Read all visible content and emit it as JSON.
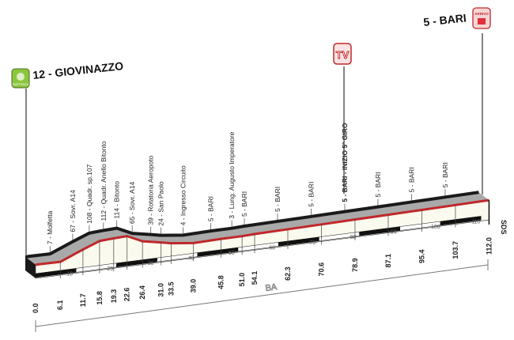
{
  "start": {
    "label": "12 - GIOVINAZZO",
    "badge": "PARTENZA",
    "color": "#8cc63f"
  },
  "finish": {
    "label": "5 - BARI",
    "badge": "ARRIVO",
    "color": "#e0303a"
  },
  "tv": {
    "label": "TV",
    "km": 78.9
  },
  "province": "BA",
  "sds": "SDS",
  "chart_data": {
    "type": "area",
    "xlabel": "",
    "ylabel": "",
    "xlim": [
      0,
      112
    ],
    "distance_ticks": [
      10,
      20,
      30,
      40,
      50,
      60,
      70,
      80,
      90,
      100,
      110
    ],
    "points": [
      {
        "km": 0.0,
        "km_label": "0.0",
        "elev": 12,
        "label": ""
      },
      {
        "km": 6.1,
        "km_label": "6.1",
        "elev": 7,
        "label": "7 - Molfetta"
      },
      {
        "km": 11.7,
        "km_label": "11.7",
        "elev": 67,
        "label": "67 - Sovr. A14"
      },
      {
        "km": 15.8,
        "km_label": "15.8",
        "elev": 108,
        "label": "108 - Quadr. sp.107"
      },
      {
        "km": 19.3,
        "km_label": "19.3",
        "elev": 112,
        "label": "112 - Quadr. Anello Bitonto"
      },
      {
        "km": 22.6,
        "km_label": "22.6",
        "elev": 114,
        "label": "114 - Bitonto"
      },
      {
        "km": 26.4,
        "km_label": "26.4",
        "elev": 65,
        "label": "65 - Sovr. A14"
      },
      {
        "km": 31.0,
        "km_label": "31.0",
        "elev": 39,
        "label": "39 - Rotatoria Aeropoto"
      },
      {
        "km": 33.5,
        "km_label": "33.5",
        "elev": 24,
        "label": "24 - San Paolo"
      },
      {
        "km": 39.0,
        "km_label": "39.0",
        "elev": 4,
        "label": "4 - Ingresso Circuito"
      },
      {
        "km": 45.8,
        "km_label": "45.8",
        "elev": 5,
        "label": "5 - BARI"
      },
      {
        "km": 51.0,
        "km_label": "51.0",
        "elev": 3,
        "label": "3 - Lung. Augusto Imperatore"
      },
      {
        "km": 54.1,
        "km_label": "54.1",
        "elev": 5,
        "label": "5 - BARI"
      },
      {
        "km": 62.3,
        "km_label": "62.3",
        "elev": 5,
        "label": "5 - BARI"
      },
      {
        "km": 70.6,
        "km_label": "70.6",
        "elev": 5,
        "label": "5 - BARI"
      },
      {
        "km": 78.9,
        "km_label": "78.9",
        "elev": 5,
        "label": "5 - BARI - INIZIO 5° GIRO",
        "bold": true
      },
      {
        "km": 87.1,
        "km_label": "87.1",
        "elev": 5,
        "label": "5 - BARI"
      },
      {
        "km": 95.4,
        "km_label": "95.4",
        "elev": 5,
        "label": "5 - BARI"
      },
      {
        "km": 103.7,
        "km_label": "103.7",
        "elev": 5,
        "label": "5 - BARI"
      },
      {
        "km": 112.0,
        "km_label": "112.0",
        "elev": 5,
        "label": ""
      }
    ]
  },
  "colors": {
    "road": "#c0282a",
    "top": "#a9a9a9",
    "face": "#fbfaee",
    "outline": "#1a1a1a"
  }
}
